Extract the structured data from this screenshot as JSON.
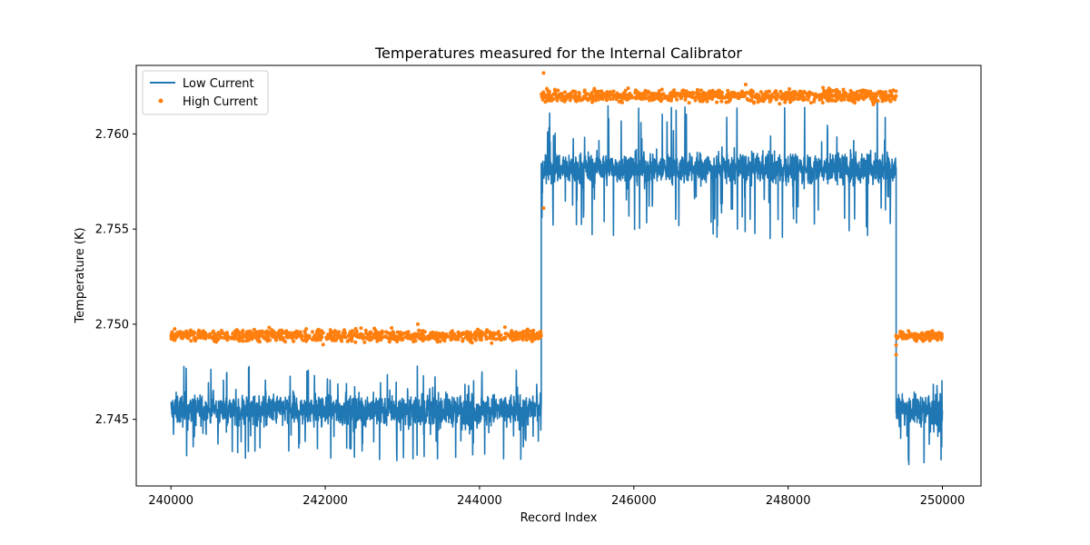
{
  "chart_data": {
    "type": "line",
    "title": "Temperatures measured for the Internal Calibrator",
    "xlabel": "Record Index",
    "ylabel": "Temperature (K)",
    "xlim": [
      239550,
      250500
    ],
    "ylim": [
      2.7415,
      2.7636
    ],
    "xticks": [
      240000,
      242000,
      244000,
      246000,
      248000,
      250000
    ],
    "xtick_labels": [
      "240000",
      "242000",
      "244000",
      "246000",
      "248000",
      "250000"
    ],
    "yticks": [
      2.745,
      2.75,
      2.755,
      2.76
    ],
    "ytick_labels": [
      "2.745",
      "2.750",
      "2.755",
      "2.760"
    ],
    "grid": false,
    "legend_position": "top-left",
    "series": [
      {
        "name": "Low Current",
        "kind": "line",
        "color": "#1f77b4",
        "segments": [
          {
            "x_start": 240000,
            "x_end": 244800,
            "base": 2.7455,
            "noise": 0.0009,
            "dip_min": 2.7428,
            "spike_max": 2.7478
          },
          {
            "x_start": 244800,
            "x_end": 249400,
            "base": 2.7582,
            "noise": 0.0009,
            "dip_min": 2.7545,
            "spike_max": 2.7618
          },
          {
            "x_start": 249400,
            "x_end": 250000,
            "base": 2.7455,
            "noise": 0.0009,
            "dip_min": 2.7425,
            "spike_max": 2.7478
          }
        ]
      },
      {
        "name": "High Current",
        "kind": "scatter",
        "color": "#ff7f0e",
        "segments": [
          {
            "x_start": 240000,
            "x_end": 244800,
            "base": 2.7494,
            "noise": 0.00015,
            "outliers": [
              [
                243200,
                2.75
              ],
              [
                240850,
                2.7497
              ]
            ]
          },
          {
            "x_start": 244800,
            "x_end": 249400,
            "base": 2.762,
            "noise": 0.00015,
            "outliers": [
              [
                244830,
                2.7632
              ],
              [
                244830,
                2.7561
              ],
              [
                247450,
                2.7626
              ]
            ]
          },
          {
            "x_start": 249400,
            "x_end": 250000,
            "base": 2.7494,
            "noise": 0.00012,
            "outliers": [
              [
                249400,
                2.7484
              ],
              [
                249400,
                2.7489
              ]
            ]
          }
        ]
      }
    ]
  }
}
